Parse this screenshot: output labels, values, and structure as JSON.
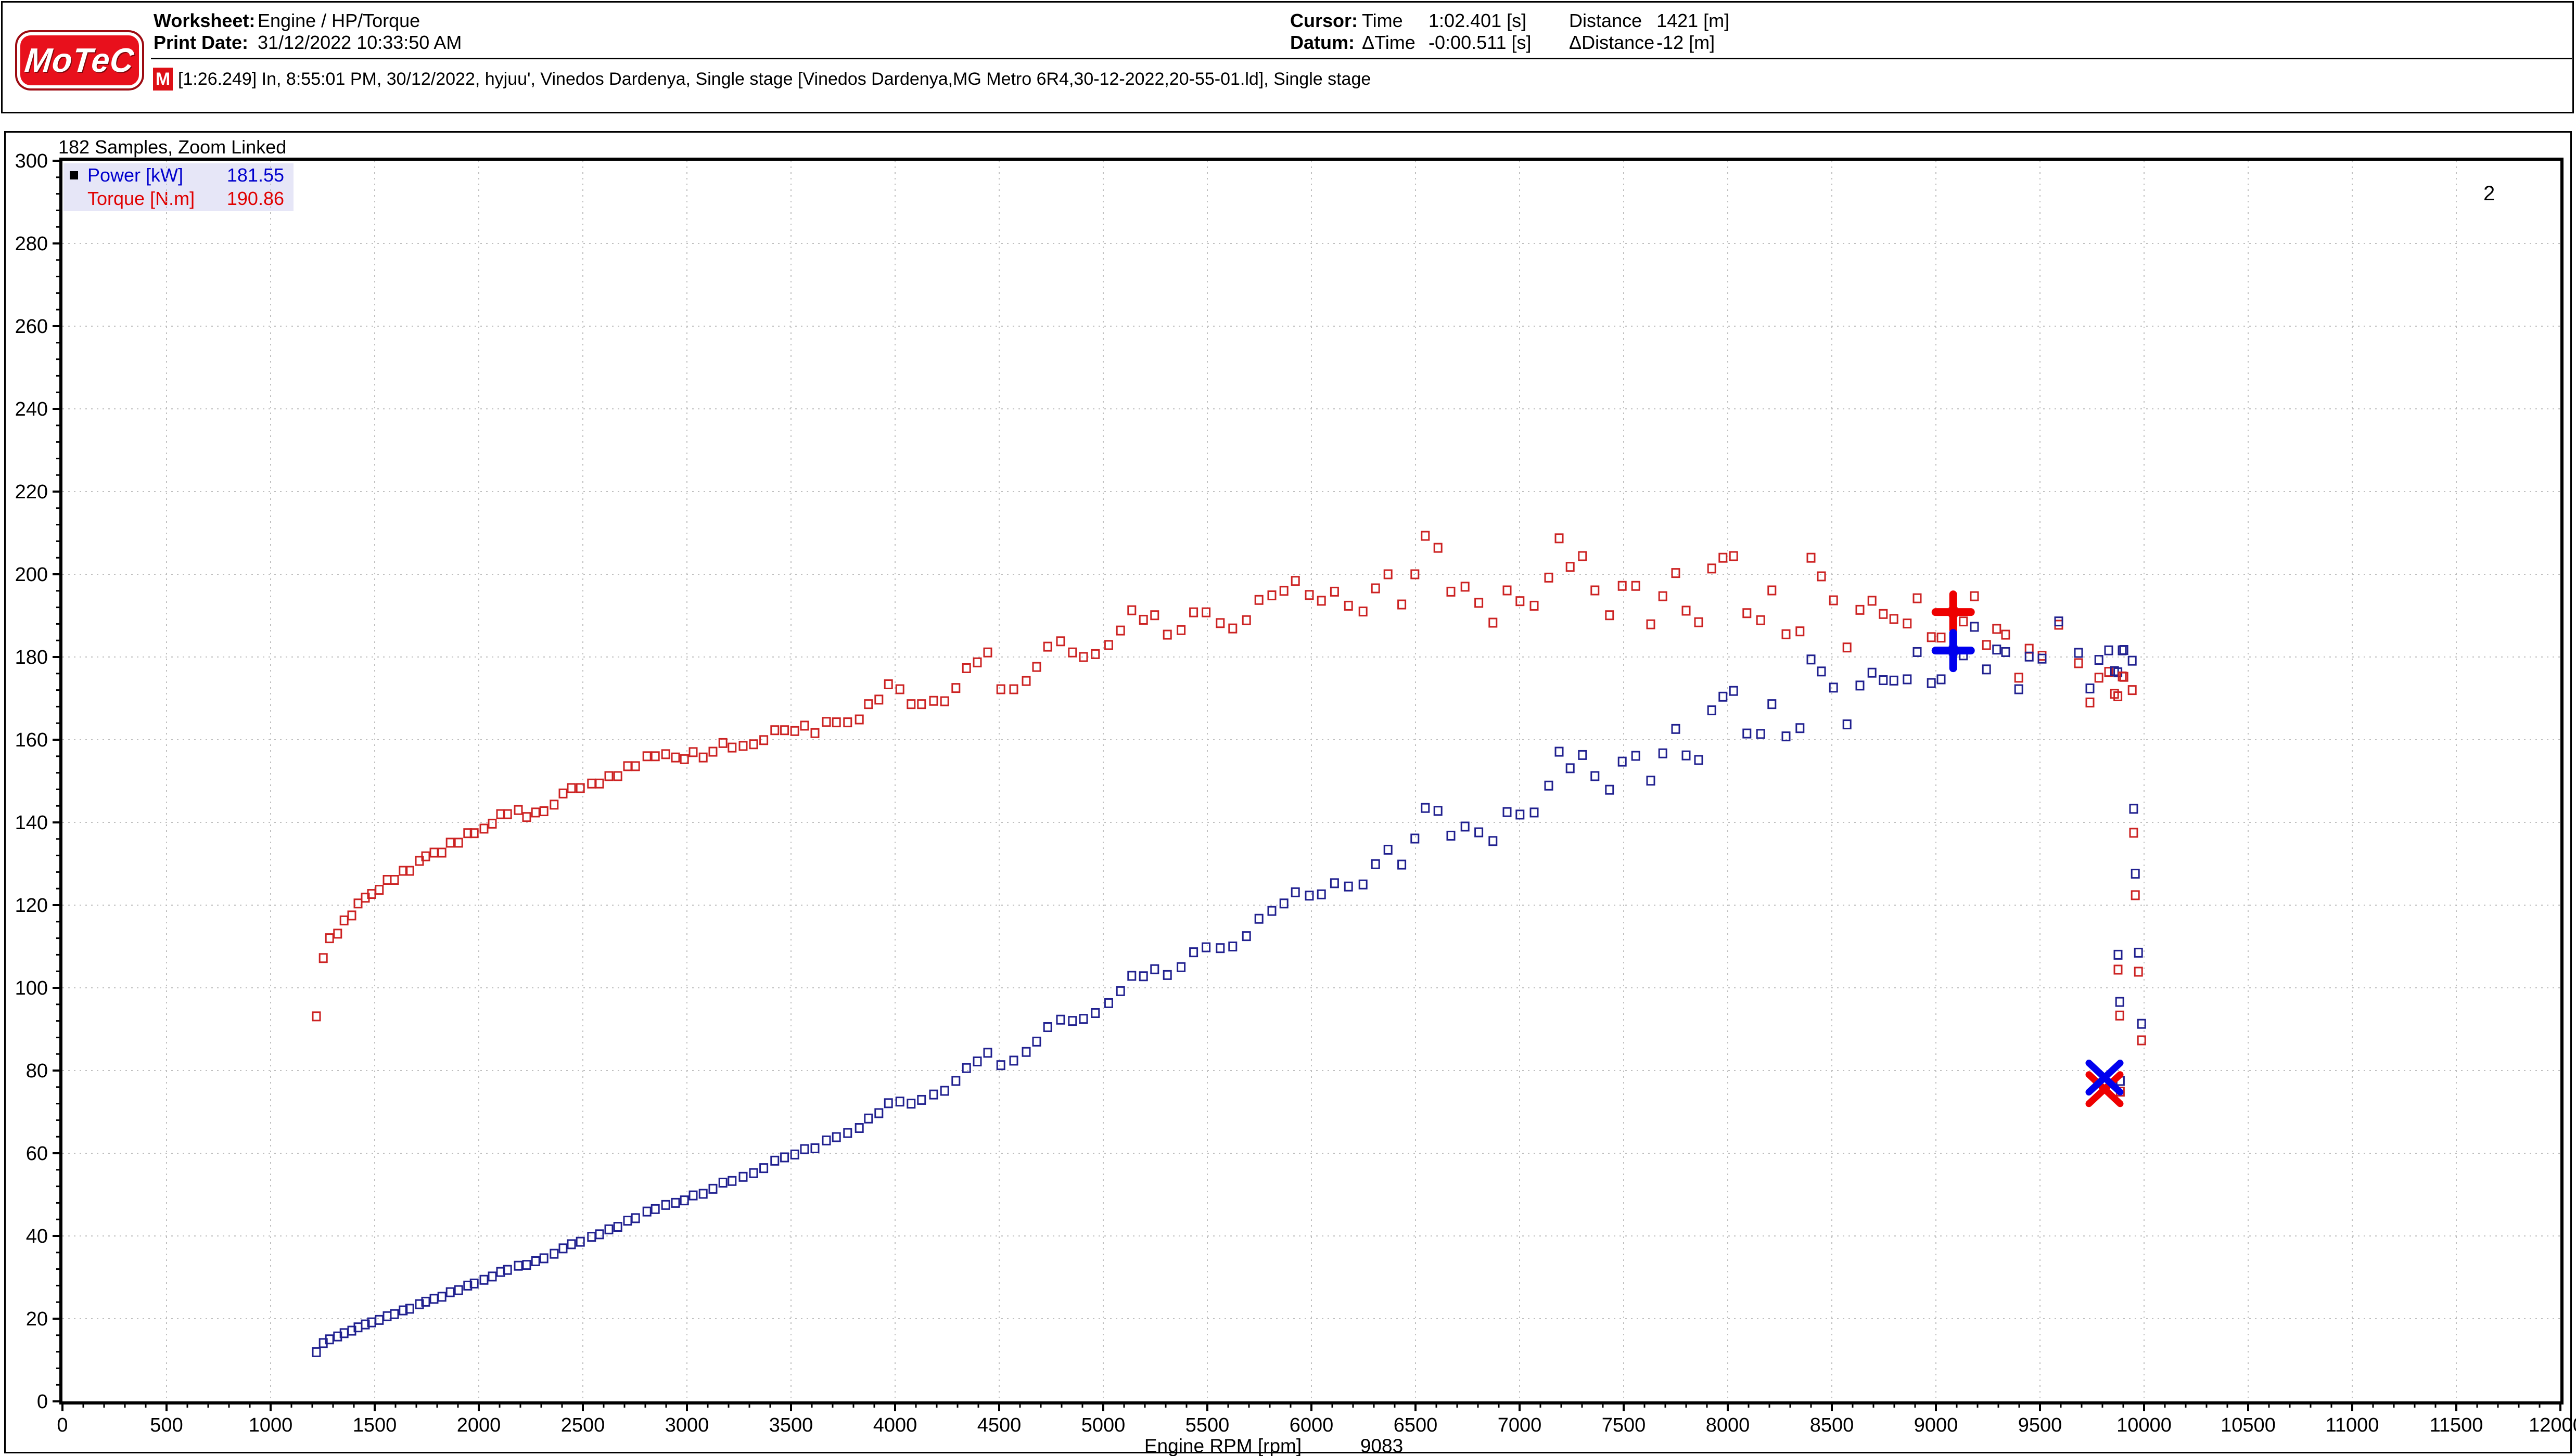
{
  "header": {
    "logo_text": "MoTeC",
    "worksheet_label": "Worksheet:",
    "worksheet_value": "Engine / HP/Torque",
    "print_date_label": "Print Date:",
    "print_date_value": "31/12/2022 10:33:50 AM",
    "cursor_label": "Cursor:",
    "cursor_time_label": "Time",
    "cursor_time_value": "1:02.401 [s]",
    "cursor_distance_label": "Distance",
    "cursor_distance_value": "1421 [m]",
    "datum_label": "Datum:",
    "datum_time_label": "ΔTime",
    "datum_time_value": "-0:00.511 [s]",
    "datum_distance_label": "ΔDistance",
    "datum_distance_value": "-12 [m]",
    "log_badge": "M",
    "log_text": "[1:26.249] In, 8:55:01 PM, 30/12/2022, hyjuu', Vinedos Dardenya, Single stage [Vinedos Dardenya,MG Metro 6R4,30-12-2022,20-55-01.ld], Single stage"
  },
  "plot_header": {
    "samples_text": "182 Samples, Zoom Linked",
    "group_number": "2"
  },
  "legend": {
    "rows": [
      {
        "label": "Power [kW]",
        "value": "181.55",
        "color": "#0000cd",
        "active": true
      },
      {
        "label": "Torque [N.m]",
        "value": "190.86",
        "color": "#e00000",
        "active": false
      }
    ]
  },
  "chart_data": {
    "type": "scatter",
    "xlabel": "Engine RPM [rpm]",
    "cursor_x_readout": "9083",
    "xlim": [
      0,
      12000
    ],
    "ylim": [
      0,
      300
    ],
    "x_tick_major": 500,
    "x_tick_minor": 100,
    "y_tick_major": 20,
    "y_tick_minor": 4,
    "grid": "dotted-at-major-ticks",
    "grid_color": "#bfbfbf",
    "series": [
      {
        "name": "Power [kW]",
        "color": "#20208f",
        "marker": "open-square",
        "sample_index": 2
      },
      {
        "name": "Torque [N.m]",
        "color": "#cc2222",
        "marker": "open-square",
        "sample_index": 1
      }
    ],
    "power_formula": "power_kW = torque_Nm * rpm / 9549.3",
    "samples": [
      [
        1220,
        93.1,
        11.9
      ],
      [
        1253,
        107.2,
        14.1
      ],
      [
        1283,
        112.0,
        15.0
      ],
      [
        1322,
        113.1,
        15.7
      ],
      [
        1353,
        116.3,
        16.5
      ],
      [
        1390,
        117.5,
        17.1
      ],
      [
        1420,
        120.4,
        17.9
      ],
      [
        1455,
        121.8,
        18.6
      ],
      [
        1485,
        122.7,
        19.1
      ],
      [
        1522,
        123.7,
        19.7
      ],
      [
        1560,
        126.1,
        20.6
      ],
      [
        1595,
        126.1,
        21.1
      ],
      [
        1637,
        128.3,
        22.0
      ],
      [
        1668,
        128.3,
        22.4
      ],
      [
        1715,
        130.7,
        23.5
      ],
      [
        1745,
        131.8,
        24.1
      ],
      [
        1785,
        132.7,
        24.8
      ],
      [
        1823,
        132.7,
        25.3
      ],
      [
        1863,
        135.1,
        26.4
      ],
      [
        1903,
        135.1,
        26.9
      ],
      [
        1947,
        137.4,
        28.0
      ],
      [
        1978,
        137.4,
        28.5
      ],
      [
        2025,
        138.5,
        29.4
      ],
      [
        2065,
        139.7,
        30.2
      ],
      [
        2105,
        142.0,
        31.3
      ],
      [
        2138,
        142.0,
        31.8
      ],
      [
        2190,
        143.0,
        32.8
      ],
      [
        2230,
        141.3,
        33.0
      ],
      [
        2273,
        142.4,
        33.9
      ],
      [
        2313,
        142.7,
        34.6
      ],
      [
        2362,
        144.3,
        35.7
      ],
      [
        2405,
        147.0,
        37.0
      ],
      [
        2445,
        148.3,
        38.0
      ],
      [
        2488,
        148.3,
        38.6
      ],
      [
        2542,
        149.4,
        39.8
      ],
      [
        2580,
        149.4,
        40.4
      ],
      [
        2625,
        151.2,
        41.6
      ],
      [
        2668,
        151.2,
        42.2
      ],
      [
        2715,
        153.6,
        43.7
      ],
      [
        2753,
        153.6,
        44.3
      ],
      [
        2808,
        156.0,
        45.9
      ],
      [
        2848,
        156.0,
        46.5
      ],
      [
        2898,
        156.5,
        47.5
      ],
      [
        2945,
        155.7,
        48.0
      ],
      [
        2988,
        155.3,
        48.6
      ],
      [
        3030,
        157.0,
        49.8
      ],
      [
        3078,
        155.7,
        50.2
      ],
      [
        3125,
        157.1,
        51.4
      ],
      [
        3173,
        159.2,
        52.9
      ],
      [
        3217,
        158.1,
        53.3
      ],
      [
        3270,
        158.5,
        54.3
      ],
      [
        3320,
        158.9,
        55.2
      ],
      [
        3369,
        159.9,
        56.4
      ],
      [
        3422,
        162.3,
        58.2
      ],
      [
        3469,
        162.3,
        59.0
      ],
      [
        3518,
        162.1,
        59.7
      ],
      [
        3565,
        163.4,
        61.0
      ],
      [
        3615,
        161.6,
        61.2
      ],
      [
        3670,
        164.3,
        63.1
      ],
      [
        3718,
        164.2,
        63.9
      ],
      [
        3772,
        164.2,
        64.9
      ],
      [
        3828,
        164.9,
        66.1
      ],
      [
        3872,
        168.6,
        68.4
      ],
      [
        3922,
        169.7,
        69.7
      ],
      [
        3968,
        173.4,
        72.1
      ],
      [
        4023,
        172.2,
        72.5
      ],
      [
        4077,
        168.6,
        72.0
      ],
      [
        4127,
        168.6,
        72.9
      ],
      [
        4185,
        169.4,
        74.2
      ],
      [
        4238,
        169.3,
        75.1
      ],
      [
        4292,
        172.5,
        77.5
      ],
      [
        4343,
        177.3,
        80.6
      ],
      [
        4395,
        178.7,
        82.2
      ],
      [
        4445,
        181.1,
        84.3
      ],
      [
        4508,
        172.2,
        81.3
      ],
      [
        4570,
        172.2,
        82.4
      ],
      [
        4630,
        174.2,
        84.5
      ],
      [
        4680,
        177.6,
        87.0
      ],
      [
        4733,
        182.5,
        90.5
      ],
      [
        4795,
        183.8,
        92.3
      ],
      [
        4852,
        181.1,
        92.0
      ],
      [
        4905,
        180.0,
        92.5
      ],
      [
        4962,
        180.7,
        93.9
      ],
      [
        5026,
        182.9,
        96.3
      ],
      [
        5083,
        186.4,
        99.2
      ],
      [
        5137,
        191.3,
        102.9
      ],
      [
        5193,
        189.0,
        102.8
      ],
      [
        5247,
        190.1,
        104.5
      ],
      [
        5308,
        185.4,
        103.1
      ],
      [
        5374,
        186.5,
        105.0
      ],
      [
        5434,
        190.8,
        108.6
      ],
      [
        5494,
        190.8,
        109.8
      ],
      [
        5562,
        188.2,
        109.6
      ],
      [
        5622,
        186.9,
        110.0
      ],
      [
        5688,
        188.9,
        112.5
      ],
      [
        5748,
        193.8,
        116.7
      ],
      [
        5810,
        194.9,
        118.6
      ],
      [
        5868,
        196.0,
        120.4
      ],
      [
        5923,
        198.4,
        123.1
      ],
      [
        5990,
        195.0,
        122.3
      ],
      [
        6048,
        193.6,
        122.6
      ],
      [
        6111,
        195.8,
        125.3
      ],
      [
        6178,
        192.4,
        124.5
      ],
      [
        6248,
        191.0,
        125.0
      ],
      [
        6308,
        196.6,
        129.9
      ],
      [
        6368,
        200.0,
        133.4
      ],
      [
        6434,
        192.7,
        129.8
      ],
      [
        6497,
        200.0,
        136.1
      ],
      [
        6547,
        209.3,
        143.5
      ],
      [
        6608,
        206.4,
        142.8
      ],
      [
        6670,
        195.8,
        136.8
      ],
      [
        6738,
        197.0,
        139.0
      ],
      [
        6804,
        193.1,
        137.6
      ],
      [
        6872,
        188.3,
        135.5
      ],
      [
        6940,
        196.1,
        142.5
      ],
      [
        7002,
        193.5,
        141.9
      ],
      [
        7070,
        192.4,
        142.4
      ],
      [
        7140,
        199.2,
        148.9
      ],
      [
        7190,
        208.7,
        157.1
      ],
      [
        7243,
        201.8,
        153.1
      ],
      [
        7302,
        204.4,
        156.3
      ],
      [
        7362,
        196.1,
        151.2
      ],
      [
        7432,
        190.1,
        147.9
      ],
      [
        7493,
        197.2,
        154.7
      ],
      [
        7558,
        197.2,
        156.1
      ],
      [
        7630,
        187.9,
        150.1
      ],
      [
        7688,
        194.7,
        156.7
      ],
      [
        7750,
        200.3,
        162.6
      ],
      [
        7800,
        191.2,
        156.2
      ],
      [
        7860,
        188.4,
        155.1
      ],
      [
        7923,
        201.4,
        167.1
      ],
      [
        7977,
        204.0,
        170.4
      ],
      [
        8028,
        204.4,
        171.8
      ],
      [
        8092,
        190.6,
        161.5
      ],
      [
        8158,
        188.9,
        161.4
      ],
      [
        8212,
        196.1,
        168.6
      ],
      [
        8280,
        185.5,
        160.8
      ],
      [
        8347,
        186.2,
        162.8
      ],
      [
        8400,
        204.0,
        179.4
      ],
      [
        8450,
        199.5,
        176.5
      ],
      [
        8508,
        193.7,
        172.6
      ],
      [
        8573,
        182.3,
        163.7
      ],
      [
        8635,
        191.4,
        173.1
      ],
      [
        8693,
        193.6,
        176.2
      ],
      [
        8747,
        190.4,
        174.4
      ],
      [
        8798,
        189.2,
        174.3
      ],
      [
        8862,
        188.1,
        174.6
      ],
      [
        8910,
        194.2,
        181.2
      ],
      [
        8978,
        184.8,
        173.7
      ],
      [
        9025,
        184.7,
        174.6
      ],
      [
        9083,
        190.86,
        181.55
      ],
      [
        9132,
        188.6,
        180.4
      ],
      [
        9185,
        194.7,
        187.3
      ],
      [
        9243,
        182.9,
        177.0
      ],
      [
        9292,
        186.8,
        181.8
      ],
      [
        9335,
        185.4,
        181.2
      ],
      [
        9398,
        175.0,
        172.2
      ],
      [
        9448,
        182.0,
        180.1
      ],
      [
        9510,
        180.3,
        179.6
      ],
      [
        9590,
        187.8,
        188.6
      ],
      [
        9685,
        178.5,
        181.0
      ],
      [
        9740,
        169.0,
        172.4
      ],
      [
        9783,
        175.0,
        179.3
      ],
      [
        9830,
        176.4,
        181.6
      ],
      [
        9858,
        171.1,
        176.6
      ],
      [
        9874,
        170.5,
        176.3
      ],
      [
        9895,
        175.3,
        181.6
      ],
      [
        9903,
        175.2,
        181.7
      ],
      [
        9943,
        172.0,
        179.1
      ],
      [
        9950,
        137.5,
        143.3
      ],
      [
        9958,
        122.4,
        127.6
      ],
      [
        9875,
        104.4,
        108.0
      ],
      [
        9973,
        103.9,
        108.5
      ],
      [
        9883,
        93.3,
        96.6
      ],
      [
        9988,
        87.3,
        91.3
      ],
      [
        9886,
        74.9,
        77.5
      ]
    ],
    "cursor_marker": {
      "rpm": 9083,
      "torque": 190.86,
      "power": 181.55,
      "shape": "plus",
      "torque_color": "#ee0000",
      "power_color": "#0000ee"
    },
    "datum_marker": {
      "rpm": 9810,
      "torque": 75.5,
      "power": 78.3,
      "shape": "x",
      "torque_color": "#ee0000",
      "power_color": "#0000ee"
    }
  }
}
